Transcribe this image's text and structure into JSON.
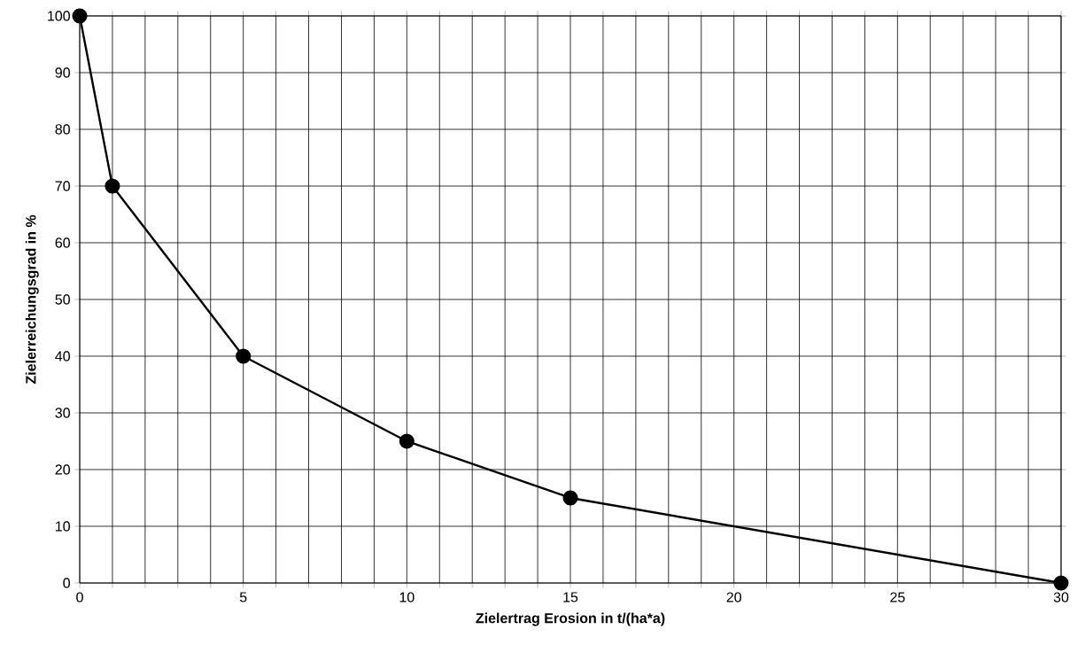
{
  "chart_data": {
    "type": "line",
    "xlabel": "Zielertrag Erosion in t/(ha*a)",
    "ylabel": "Zielerreichungsgrad in %",
    "x": [
      0,
      1,
      5,
      10,
      15,
      30
    ],
    "series": [
      {
        "color": "#000000",
        "values": [
          100,
          70,
          40,
          25,
          15,
          0
        ]
      }
    ],
    "xlim": [
      0,
      30
    ],
    "ylim": [
      0,
      100
    ],
    "xticks": [
      0,
      {
        "value": 1,
        "label": null
      },
      {
        "value": 2,
        "label": null
      },
      {
        "value": 3,
        "label": null
      },
      {
        "value": 4,
        "label": null
      },
      5,
      {
        "value": 6,
        "label": null
      },
      {
        "value": 7,
        "label": null
      },
      {
        "value": 8,
        "label": null
      },
      {
        "value": 9,
        "label": null
      },
      10,
      {
        "value": 11,
        "label": null
      },
      {
        "value": 12,
        "label": null
      },
      {
        "value": 13,
        "label": null
      },
      {
        "value": 14,
        "label": null
      },
      15,
      {
        "value": 16,
        "label": null
      },
      {
        "value": 17,
        "label": null
      },
      {
        "value": 18,
        "label": null
      },
      {
        "value": 19,
        "label": null
      },
      20,
      {
        "value": 21,
        "label": null
      },
      {
        "value": 22,
        "label": null
      },
      {
        "value": 23,
        "label": null
      },
      {
        "value": 24,
        "label": null
      },
      25,
      {
        "value": 26,
        "label": null
      },
      {
        "value": 27,
        "label": null
      },
      {
        "value": 28,
        "label": null
      },
      {
        "value": 29,
        "label": null
      },
      30
    ],
    "yticks": [
      0,
      10,
      20,
      30,
      40,
      50,
      60,
      70,
      80,
      90,
      100
    ],
    "grid": true,
    "marker": "circle",
    "line_style": "solid"
  }
}
